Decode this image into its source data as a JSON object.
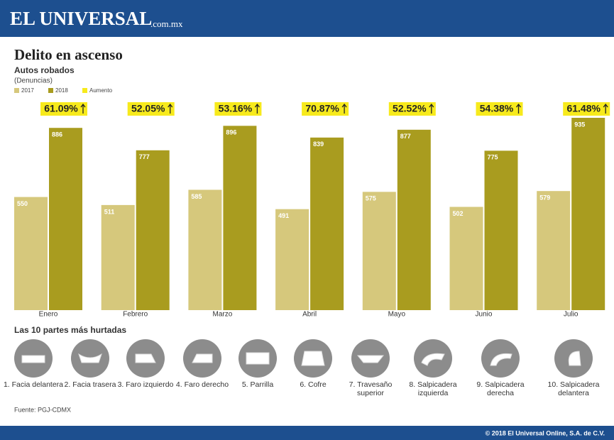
{
  "header": {
    "brand": "EL UNIVERSAL",
    "domain": ".com.mx"
  },
  "chart_data": {
    "type": "bar",
    "title": "Delito en ascenso",
    "subtitle": "Autos robados",
    "unit_label": "(Denuncias)",
    "categories": [
      "Enero",
      "Febrero",
      "Marzo",
      "Abril",
      "Mayo",
      "Junio",
      "Julio"
    ],
    "series": [
      {
        "name": "2017",
        "color": "#d6c87c",
        "values": [
          550,
          511,
          585,
          491,
          575,
          502,
          579
        ]
      },
      {
        "name": "2018",
        "color": "#a99c1f",
        "values": [
          886,
          777,
          896,
          839,
          877,
          775,
          935
        ]
      }
    ],
    "increase": {
      "name": "Aumento",
      "color": "#f7ea1c",
      "values": [
        61.09,
        52.05,
        53.16,
        70.87,
        52.52,
        54.38,
        61.48
      ],
      "value_labels": [
        "61.09%",
        "52.05%",
        "53.16%",
        "70.87%",
        "52.52%",
        "54.38%",
        "61.48%"
      ]
    }
  },
  "parts": {
    "title": "Las 10 partes más hurtadas",
    "items": [
      "1. Facia delantera",
      "2. Facia trasera",
      "3. Faro izquierdo",
      "4. Faro derecho",
      "5. Parrilla",
      "6. Cofre",
      "7. Travesaño superior",
      "8. Salpicadera izquierda",
      "9. Salpicadera derecha",
      "10. Salpicadera delantera"
    ]
  },
  "source": "Fuente: PGJ-CDMX",
  "footer": "© 2018 El Universal Online, S.A. de C.V."
}
